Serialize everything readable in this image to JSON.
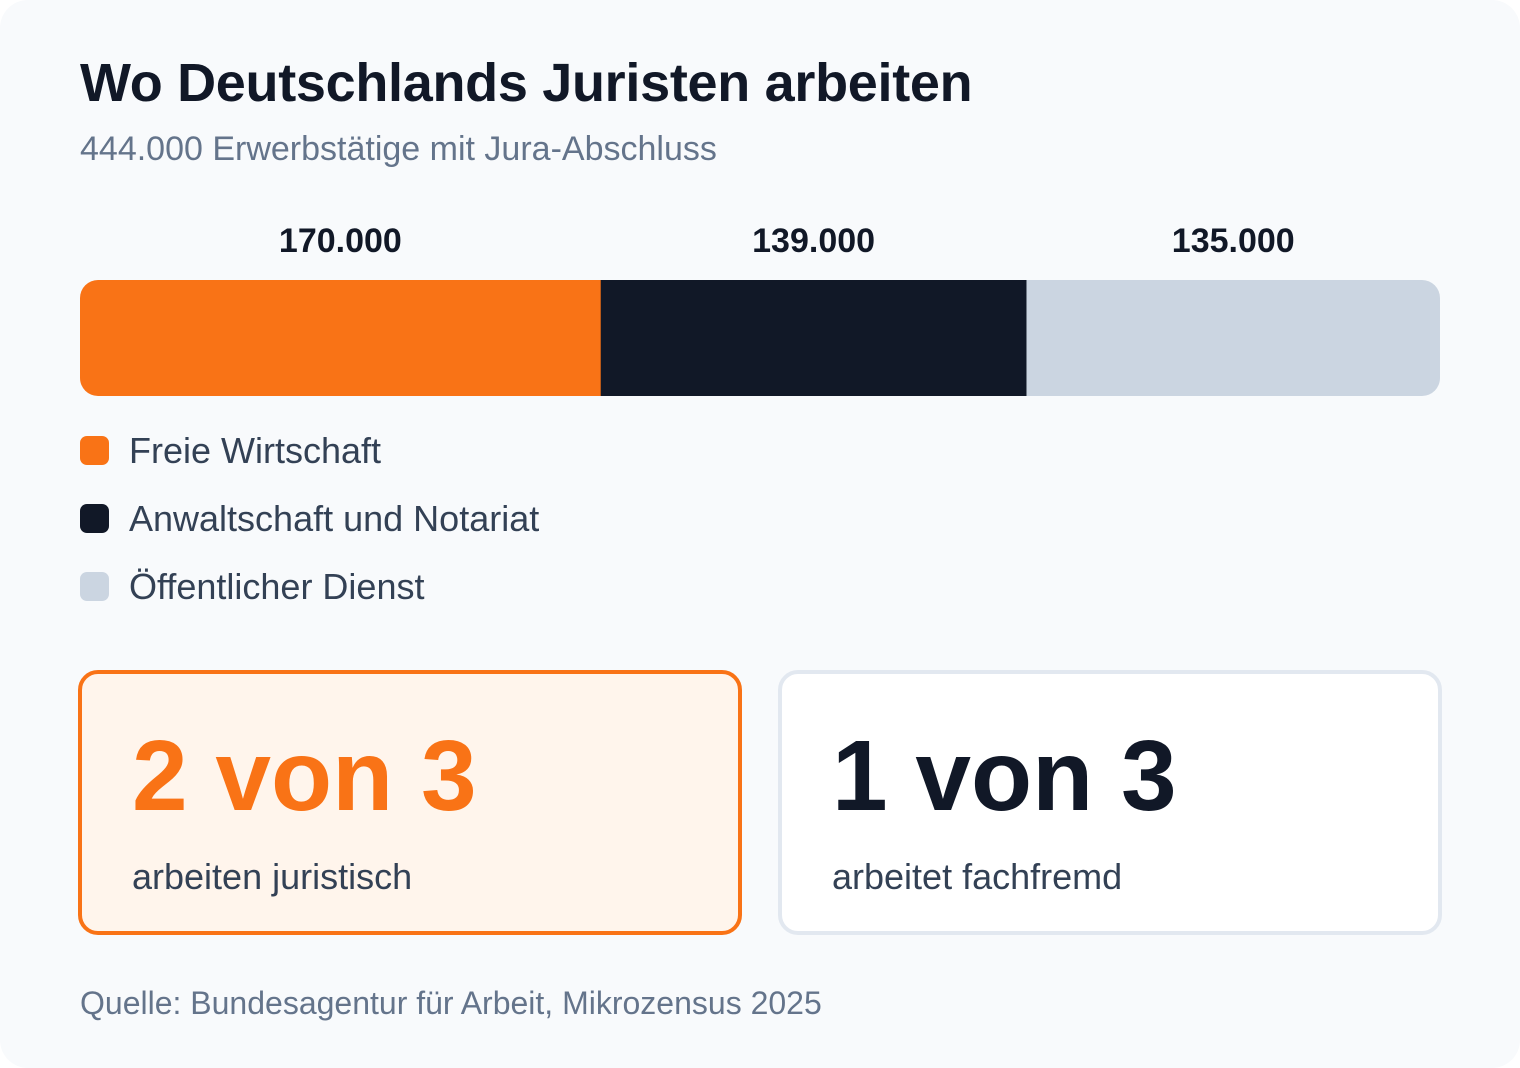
{
  "title": "Wo Deutschlands Juristen arbeiten",
  "subtitle": "444.000 Erwerbstätige mit Jura-Abschluss",
  "chart_data": {
    "type": "bar",
    "orientation": "horizontal-stacked",
    "categories": [
      "Freie Wirtschaft",
      "Anwaltschaft und Notariat",
      "Öffentlicher Dienst"
    ],
    "values": [
      170000,
      139000,
      135000
    ],
    "value_labels": [
      "170.000",
      "139.000",
      "135.000"
    ],
    "colors": [
      "#f97316",
      "#111827",
      "#cbd5e1"
    ],
    "total": 444000,
    "legend_position": "bottom-left",
    "grid": false
  },
  "stats": [
    {
      "value": "2 von 3",
      "caption": "arbeiten juristisch",
      "accent": "#f97316"
    },
    {
      "value": "1 von 3",
      "caption": "arbeitet fachfremd",
      "accent": "#111827"
    }
  ],
  "source": "Quelle: Bundesagentur für Arbeit, Mikrozensus 2025"
}
